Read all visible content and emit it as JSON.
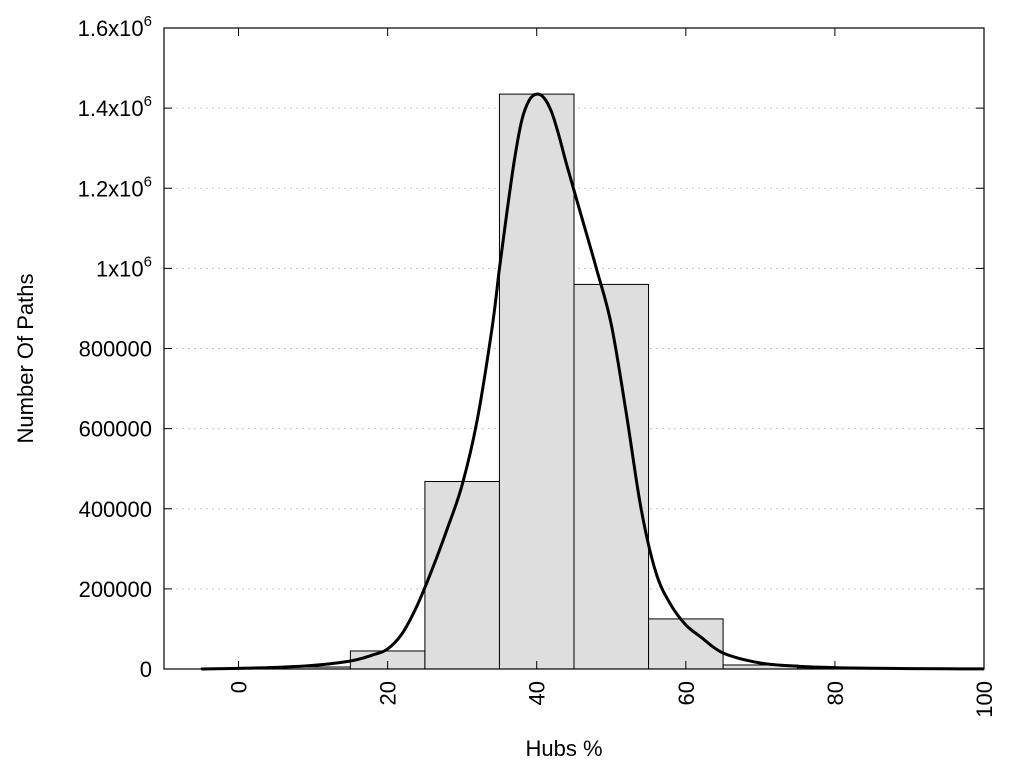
{
  "chart_data": {
    "type": "bar",
    "xlabel": "Hubs %",
    "ylabel": "Number Of Paths",
    "xlim": [
      -10,
      100
    ],
    "ylim": [
      0,
      1600000
    ],
    "x_ticks": [
      {
        "value": 0,
        "label": "0"
      },
      {
        "value": 20,
        "label": "20"
      },
      {
        "value": 40,
        "label": "40"
      },
      {
        "value": 60,
        "label": "60"
      },
      {
        "value": 80,
        "label": "80"
      },
      {
        "value": 100,
        "label": "100"
      }
    ],
    "y_ticks": [
      {
        "value": 0,
        "label": "0",
        "exp": ""
      },
      {
        "value": 200000,
        "label": "200000",
        "exp": ""
      },
      {
        "value": 400000,
        "label": "400000",
        "exp": ""
      },
      {
        "value": 600000,
        "label": "600000",
        "exp": ""
      },
      {
        "value": 800000,
        "label": "800000",
        "exp": ""
      },
      {
        "value": 1000000,
        "label": "1x10",
        "exp": "6"
      },
      {
        "value": 1200000,
        "label": "1.2x10",
        "exp": "6"
      },
      {
        "value": 1400000,
        "label": "1.4x10",
        "exp": "6"
      },
      {
        "value": 1600000,
        "label": "1.6x10",
        "exp": "6"
      }
    ],
    "grid": "horizontal-dotted",
    "bins": [
      {
        "start": -5,
        "end": 5,
        "value": 2000
      },
      {
        "start": 5,
        "end": 15,
        "value": 5000
      },
      {
        "start": 15,
        "end": 25,
        "value": 45000
      },
      {
        "start": 25,
        "end": 35,
        "value": 468000
      },
      {
        "start": 35,
        "end": 45,
        "value": 1435000
      },
      {
        "start": 45,
        "end": 55,
        "value": 960000
      },
      {
        "start": 55,
        "end": 65,
        "value": 125000
      },
      {
        "start": 65,
        "end": 75,
        "value": 10000
      },
      {
        "start": 75,
        "end": 85,
        "value": 3000
      },
      {
        "start": 85,
        "end": 95,
        "value": 1500
      },
      {
        "start": 95,
        "end": 100,
        "value": 500
      }
    ],
    "curve": {
      "type": "line",
      "x": [
        -5,
        0,
        5,
        10,
        15,
        18,
        20,
        22,
        24,
        26,
        28,
        30,
        32,
        34,
        35,
        36,
        37,
        38,
        39,
        40,
        41,
        42,
        43,
        44,
        46,
        48,
        50,
        52,
        54,
        56,
        58,
        60,
        62,
        65,
        70,
        75,
        80,
        85,
        90,
        95,
        100
      ],
      "y": [
        0,
        1500,
        4000,
        9000,
        20000,
        35000,
        50000,
        90000,
        160000,
        250000,
        350000,
        460000,
        620000,
        850000,
        1000000,
        1140000,
        1270000,
        1370000,
        1420000,
        1435000,
        1425000,
        1390000,
        1330000,
        1260000,
        1130000,
        1000000,
        860000,
        640000,
        400000,
        240000,
        160000,
        110000,
        80000,
        40000,
        15000,
        7000,
        3500,
        2000,
        1000,
        500,
        200
      ]
    }
  }
}
